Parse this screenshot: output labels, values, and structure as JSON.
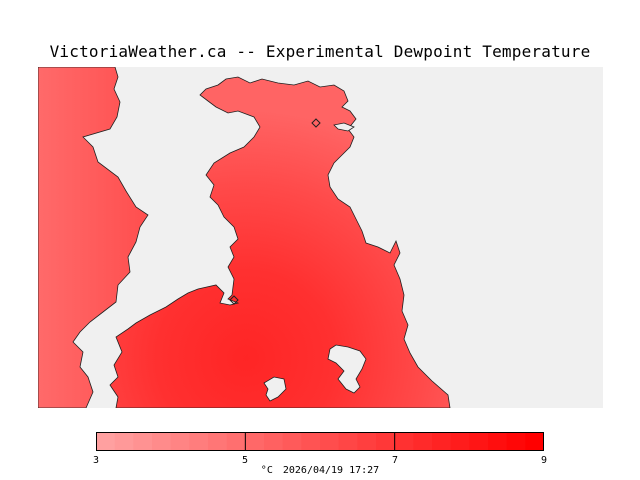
{
  "title": "VictoriaWeather.ca -- Experimental Dewpoint Temperature",
  "colors": {
    "background": "#ffffff",
    "map_background": "#f0f0f0",
    "colorbar_low": "#ffa0a0",
    "colorbar_high": "#ff0000",
    "coastline": "#202020"
  },
  "map": {
    "variable": "Dewpoint Temperature",
    "station_icon": "diamond-marker-icon",
    "station_markers": 2
  },
  "colorbar": {
    "min": 3,
    "max": 9,
    "ticks": [
      {
        "value": 3,
        "label": "3"
      },
      {
        "value": 5,
        "label": "5"
      },
      {
        "value": 7,
        "label": "7"
      },
      {
        "value": 9,
        "label": "9"
      }
    ],
    "steps": 24
  },
  "caption": {
    "unit": "°C",
    "timestamp": "2026/04/19 17:27"
  }
}
